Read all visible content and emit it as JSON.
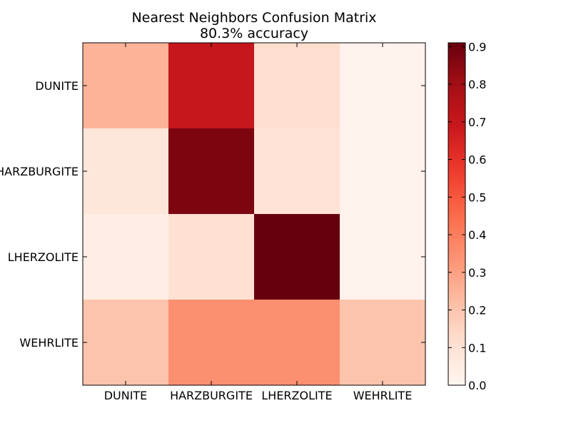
{
  "chart_data": {
    "type": "heatmap",
    "title": "Nearest Neighbors Confusion Matrix",
    "subtitle": "80.3% accuracy",
    "xlabel": "",
    "ylabel": "",
    "x_categories": [
      "DUNITE",
      "HARZBURGITE",
      "LHERZOLITE",
      "WEHRLITE"
    ],
    "y_categories": [
      "DUNITE",
      "HARZBURGITE",
      "LHERZOLITE",
      "WEHRLITE"
    ],
    "values": [
      [
        0.25,
        0.7,
        0.12,
        0.02
      ],
      [
        0.08,
        0.87,
        0.1,
        0.02
      ],
      [
        0.04,
        0.11,
        0.91,
        0.02
      ],
      [
        0.2,
        0.35,
        0.35,
        0.2
      ]
    ],
    "colormap": "Reds",
    "colorbar": {
      "range": [
        0.0,
        0.91
      ],
      "ticks": [
        "0.0",
        "0.1",
        "0.2",
        "0.3",
        "0.4",
        "0.5",
        "0.6",
        "0.7",
        "0.8",
        "0.9"
      ]
    },
    "grid": false
  }
}
